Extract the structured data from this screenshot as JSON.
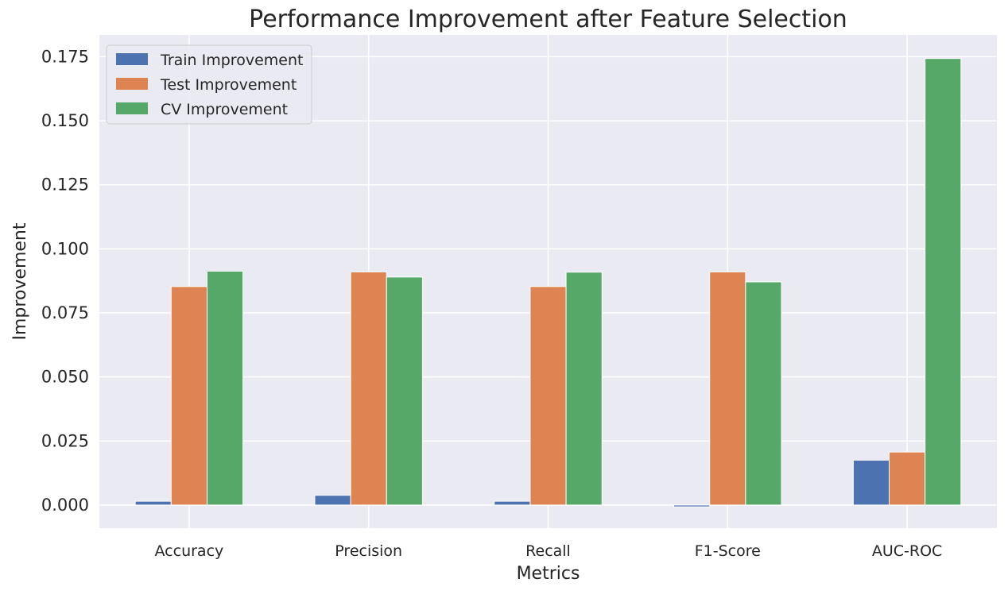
{
  "chart_data": {
    "type": "bar",
    "title": "Performance Improvement after Feature Selection",
    "xlabel": "Metrics",
    "ylabel": "Improvement",
    "categories": [
      "Accuracy",
      "Precision",
      "Recall",
      "F1-Score",
      "AUC-ROC"
    ],
    "series": [
      {
        "name": "Train Improvement",
        "color": "#4c72b0",
        "values": [
          0.0015,
          0.0038,
          0.0015,
          -0.0007,
          0.0175
        ]
      },
      {
        "name": "Test Improvement",
        "color": "#dd8452",
        "values": [
          0.0853,
          0.091,
          0.0853,
          0.091,
          0.0207
        ]
      },
      {
        "name": "CV Improvement",
        "color": "#55a868",
        "values": [
          0.0913,
          0.089,
          0.0909,
          0.0871,
          0.1743
        ]
      }
    ],
    "ylim": [
      -0.009,
      0.1835
    ],
    "yticks": [
      "0.000",
      "0.025",
      "0.050",
      "0.075",
      "0.100",
      "0.125",
      "0.150",
      "0.175"
    ],
    "grid": true,
    "legend_position": "top-left",
    "colors": {
      "background": "#eaeaf2",
      "grid": "#ffffff",
      "text": "#262626"
    }
  }
}
